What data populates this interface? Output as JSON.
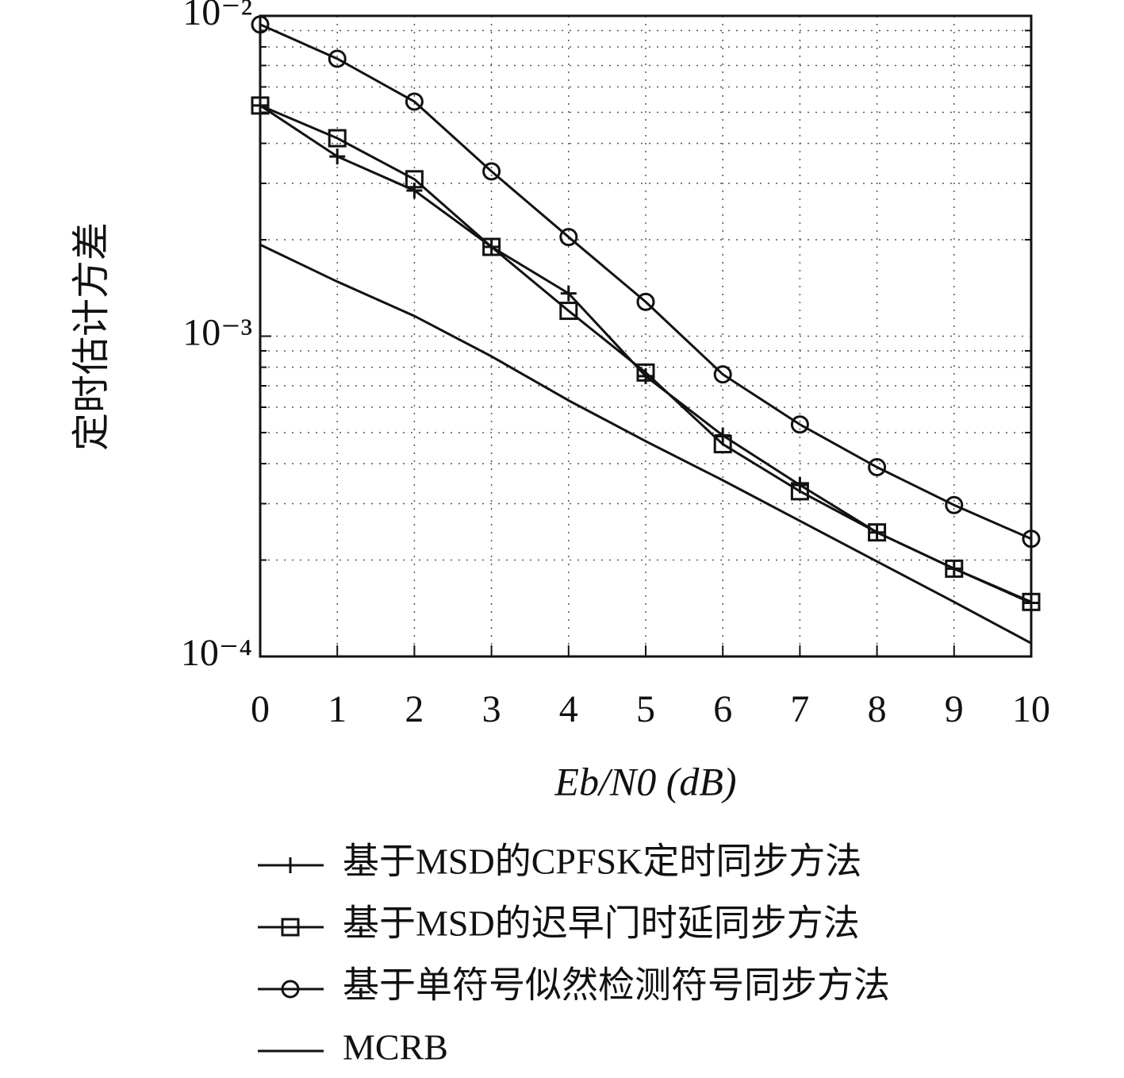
{
  "chart_data": {
    "type": "line",
    "xlabel": "Eb/N0 (dB)",
    "ylabel": "定时估计方差",
    "x": [
      0,
      1,
      2,
      3,
      4,
      5,
      6,
      7,
      8,
      9,
      10
    ],
    "xlim": [
      0,
      10
    ],
    "xticks": [
      0,
      1,
      2,
      3,
      4,
      5,
      6,
      7,
      8,
      9,
      10
    ],
    "ylim": [
      0.0001,
      0.01
    ],
    "yticks": [
      {
        "value": 0.0001,
        "label": "10⁻⁴"
      },
      {
        "value": 0.001,
        "label": "10⁻³"
      },
      {
        "value": 0.01,
        "label": "10⁻²"
      }
    ],
    "log_y": true,
    "grid": true,
    "legend": "below",
    "series": [
      {
        "name": "基于MSD的CPFSK定时同步方法",
        "color": "#111111",
        "marker": "plus",
        "values": [
          0.00525,
          0.00364,
          0.00285,
          0.0019,
          0.00136,
          0.00075,
          0.00049,
          0.000343,
          0.000244,
          0.000188,
          0.000147
        ]
      },
      {
        "name": "基于MSD的迟早门时延同步方法",
        "color": "#111111",
        "marker": "square",
        "values": [
          0.00525,
          0.00415,
          0.00309,
          0.0019,
          0.0012,
          0.00077,
          0.00046,
          0.000328,
          0.000244,
          0.000188,
          0.000148
        ]
      },
      {
        "name": "基于单符号似然检测符号同步方法",
        "color": "#111111",
        "marker": "circle",
        "values": [
          0.0094,
          0.00735,
          0.0054,
          0.00327,
          0.00204,
          0.00128,
          0.00076,
          0.00053,
          0.00039,
          0.000297,
          0.000233
        ]
      },
      {
        "name": "MCRB",
        "color": "#111111",
        "marker": "none",
        "values": [
          0.00193,
          0.00148,
          0.001156,
          0.000865,
          0.00063,
          0.00047,
          0.000355,
          0.000265,
          0.000198,
          0.000148,
          0.00011
        ]
      }
    ]
  }
}
